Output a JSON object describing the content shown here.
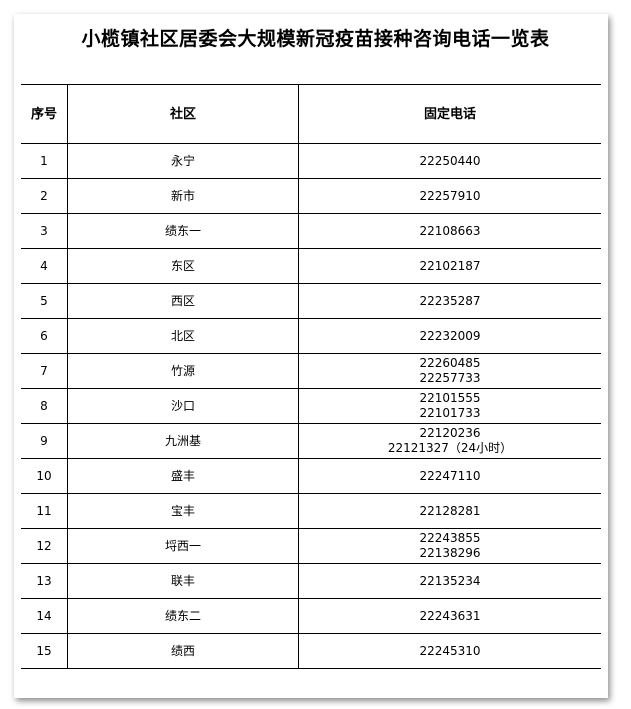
{
  "title": "小榄镇社区居委会大规模新冠疫苗接种咨询电话一览表",
  "headers": [
    "序号",
    "社区",
    "固定电话"
  ],
  "rows": [
    {
      "no": "1",
      "name": "永宁",
      "phones": [
        "22250440"
      ]
    },
    {
      "no": "2",
      "name": "新市",
      "phones": [
        "22257910"
      ]
    },
    {
      "no": "3",
      "name": "绩东一",
      "phones": [
        "22108663"
      ]
    },
    {
      "no": "4",
      "name": "东区",
      "phones": [
        "22102187"
      ]
    },
    {
      "no": "5",
      "name": "西区",
      "phones": [
        "22235287"
      ]
    },
    {
      "no": "6",
      "name": "北区",
      "phones": [
        "22232009"
      ]
    },
    {
      "no": "7",
      "name": "竹源",
      "phones": [
        "22260485",
        "22257733"
      ]
    },
    {
      "no": "8",
      "name": "沙口",
      "phones": [
        "22101555",
        "22101733"
      ]
    },
    {
      "no": "9",
      "name": "九洲基",
      "phones": [
        "22120236",
        "22121327（24小时）"
      ]
    },
    {
      "no": "10",
      "name": "盛丰",
      "phones": [
        "22247110"
      ]
    },
    {
      "no": "11",
      "name": "宝丰",
      "phones": [
        "22128281"
      ]
    },
    {
      "no": "12",
      "name": "埒西一",
      "phones": [
        "22243855",
        "22138296"
      ]
    },
    {
      "no": "13",
      "name": "联丰",
      "phones": [
        "22135234"
      ]
    },
    {
      "no": "14",
      "name": "绩东二",
      "phones": [
        "22243631"
      ]
    },
    {
      "no": "15",
      "name": "绩西",
      "phones": [
        "22245310"
      ]
    }
  ]
}
